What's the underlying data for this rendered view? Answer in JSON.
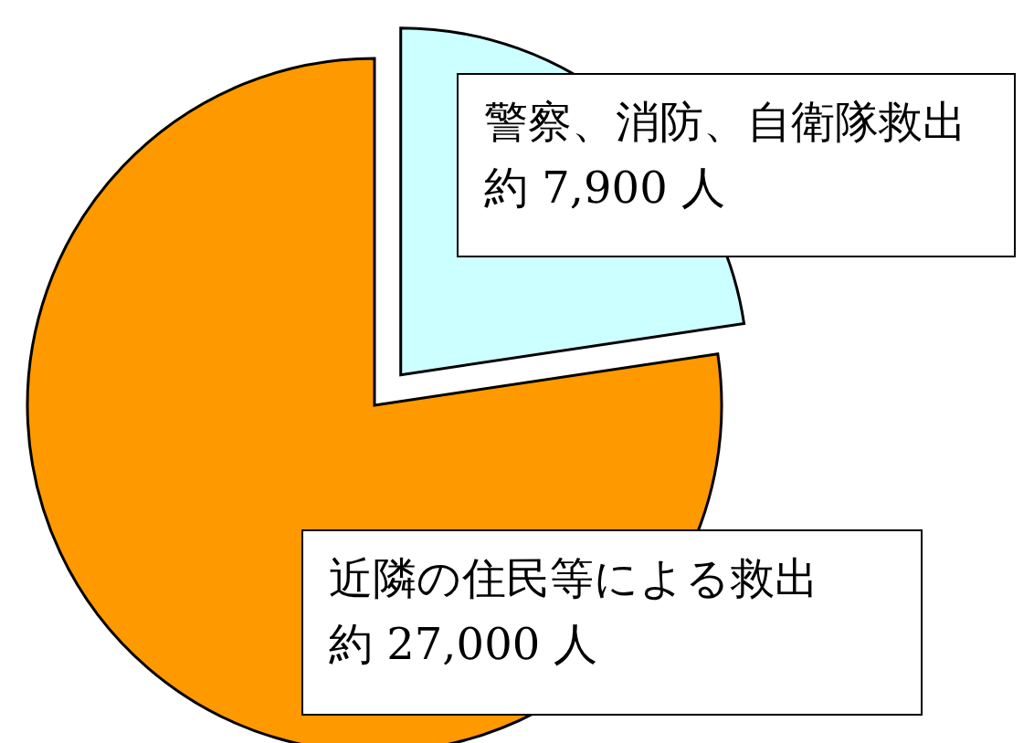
{
  "chart_data": {
    "type": "pie",
    "categories": [
      "警察、消防、自衛隊救出",
      "近隣の住民等による救出"
    ],
    "values": [
      7900,
      27000
    ],
    "colors": [
      "#ccffff",
      "#ff9900"
    ],
    "value_labels": [
      "約 7,900 人",
      "約 27,000 人"
    ]
  }
}
